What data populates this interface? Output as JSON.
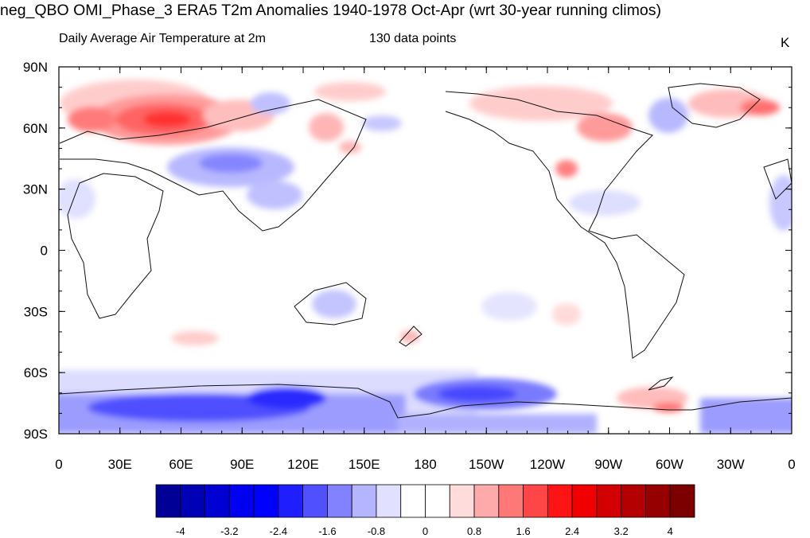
{
  "title": "neg_QBO OMI_Phase_3 ERA5 T2m Anomalies 1940-1978 Oct-Apr (wrt 30-year running climos)",
  "subtitle_left": "Daily Average Air Temperature at 2m",
  "subtitle_center": "130 data points",
  "units": "K",
  "lat_labels": [
    "90N",
    "60N",
    "30N",
    "0",
    "30S",
    "60S",
    "90S"
  ],
  "lon_labels": [
    "0",
    "30E",
    "60E",
    "90E",
    "120E",
    "150E",
    "180",
    "150W",
    "120W",
    "90W",
    "60W",
    "30W",
    "0"
  ],
  "colorbar": {
    "labels": [
      "-4",
      "-3.2",
      "-2.4",
      "-1.6",
      "-0.8",
      "0",
      "0.8",
      "1.6",
      "2.4",
      "3.2",
      "4"
    ],
    "colors": [
      "#000096",
      "#0000b4",
      "#0000d2",
      "#0000f0",
      "#0000ff",
      "#1e1eff",
      "#5050ff",
      "#8282ff",
      "#b4b4ff",
      "#e1e1ff",
      "#ffffff",
      "#ffffff",
      "#ffdcdc",
      "#ffaaaa",
      "#ff7878",
      "#ff4646",
      "#ff1414",
      "#f00000",
      "#d20000",
      "#b40000",
      "#960000",
      "#7d0000"
    ]
  }
}
